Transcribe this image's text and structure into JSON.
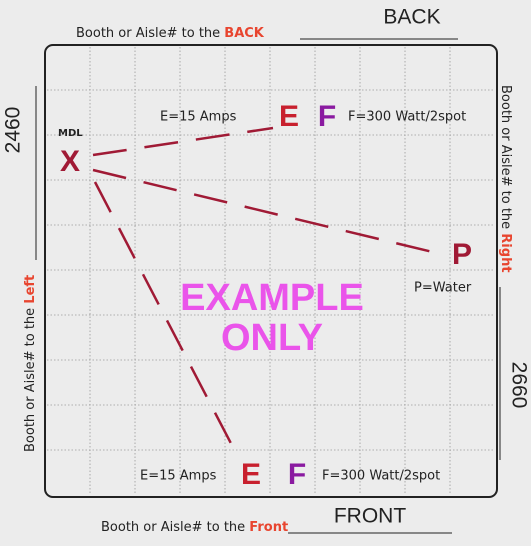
{
  "top": {
    "prefix": "Booth or Aisle# to the",
    "side": "BACK",
    "number": "BACK"
  },
  "bottom": {
    "prefix": "Booth or Aisle# to the",
    "side": "Front",
    "number": "FRONT"
  },
  "left": {
    "prefix": "Booth or Aisle# to the",
    "side": "Left",
    "number": "2460"
  },
  "right": {
    "prefix": "Booth or Aisle# to the",
    "side": "Right",
    "number": "2660"
  },
  "origin": {
    "tag": "MDL",
    "letter": "X"
  },
  "top_outlets": {
    "e_label": "E=15 Amps",
    "e": "E",
    "f": "F",
    "f_label": "F=300 Watt/2spot"
  },
  "water": {
    "letter": "P",
    "label": "P=Water"
  },
  "bottom_outlets": {
    "e_label": "E=15 Amps",
    "e": "E",
    "f": "F",
    "f_label": "F=300 Watt/2spot"
  },
  "watermark": {
    "line1": "EXAMPLE",
    "line2": "ONLY"
  }
}
